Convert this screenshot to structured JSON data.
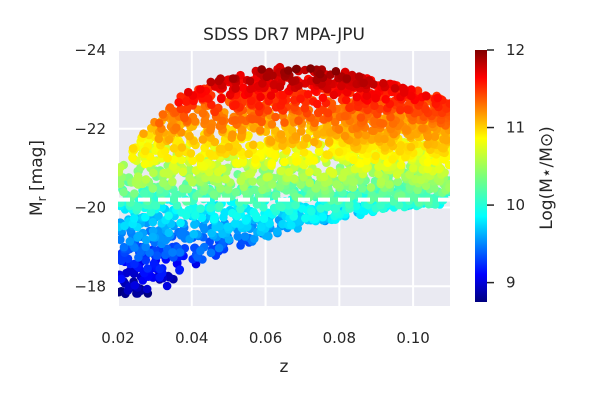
{
  "chart_data": {
    "type": "scatter",
    "title": "SDSS DR7 MPA-JPU",
    "xlabel": "z",
    "ylabel": "M_r [mag]",
    "ylabel_parts": {
      "main": "M",
      "sub": "r",
      "rest": " [mag]"
    },
    "xlim": [
      0.02,
      0.11
    ],
    "ylim": [
      -17.5,
      -24
    ],
    "y_inverted": true,
    "xticks": [
      0.02,
      0.04,
      0.06,
      0.08,
      0.1
    ],
    "xtick_labels": [
      "0.02",
      "0.04",
      "0.06",
      "0.08",
      "0.10"
    ],
    "yticks": [
      -24,
      -22,
      -20,
      -18
    ],
    "ytick_labels": [
      "−24",
      "−22",
      "−20",
      "−18"
    ],
    "grid": true,
    "background": "#eaeaf2",
    "grid_color": "#ffffff",
    "colormap": "jet",
    "colorbar": {
      "label": "Log(M⋆/M⊙)",
      "range": [
        8.75,
        12.0
      ],
      "ticks": [
        9,
        10,
        11,
        12
      ],
      "tick_labels": [
        "9",
        "10",
        "11",
        "12"
      ]
    },
    "reference_line": {
      "y": -20.2,
      "style": "dashed",
      "color": "#ffffff"
    },
    "point_cloud": {
      "z_range": [
        0.02,
        0.11
      ],
      "bright_envelope": [
        [
          0.02,
          -21.1
        ],
        [
          0.03,
          -22.3
        ],
        [
          0.04,
          -23.1
        ],
        [
          0.06,
          -23.6
        ],
        [
          0.08,
          -23.5
        ],
        [
          0.1,
          -23.0
        ],
        [
          0.11,
          -22.8
        ]
      ],
      "faint_envelope": [
        [
          0.02,
          -17.8
        ],
        [
          0.03,
          -17.8
        ],
        [
          0.035,
          -18.1
        ],
        [
          0.04,
          -18.5
        ],
        [
          0.05,
          -18.9
        ],
        [
          0.06,
          -19.2
        ],
        [
          0.07,
          -19.5
        ],
        [
          0.08,
          -19.7
        ],
        [
          0.09,
          -19.9
        ],
        [
          0.1,
          -20.0
        ],
        [
          0.11,
          -20.1
        ]
      ],
      "mass_vs_magnitude": [
        [
          -17.8,
          8.8
        ],
        [
          -18.5,
          9.2
        ],
        [
          -19.5,
          9.7
        ],
        [
          -20.5,
          10.3
        ],
        [
          -21.5,
          10.8
        ],
        [
          -22.5,
          11.3
        ],
        [
          -23.6,
          11.9
        ]
      ],
      "count": 2600
    }
  }
}
